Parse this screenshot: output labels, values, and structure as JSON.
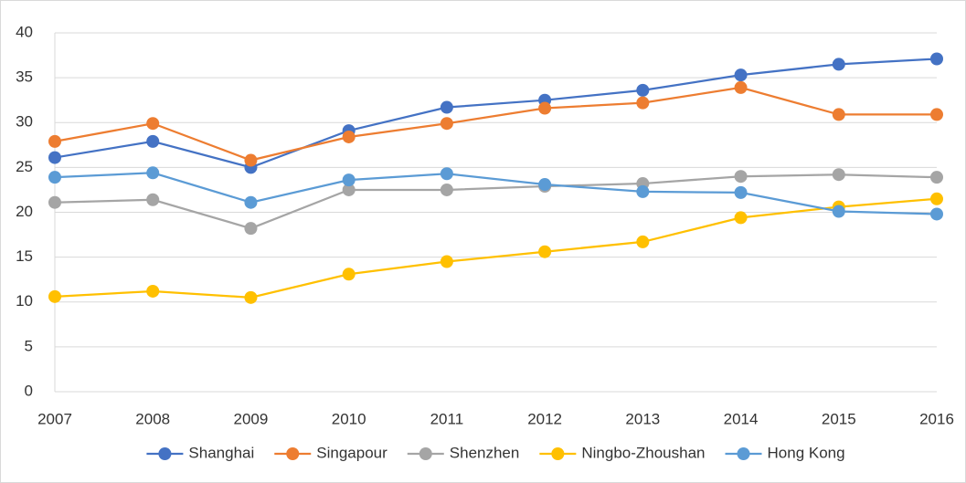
{
  "chart_data": {
    "type": "line",
    "categories": [
      "2007",
      "2008",
      "2009",
      "2010",
      "2011",
      "2012",
      "2013",
      "2014",
      "2015",
      "2016"
    ],
    "series": [
      {
        "name": "Shanghai",
        "color": "#4472c4",
        "values": [
          26.1,
          27.9,
          25.0,
          29.1,
          31.7,
          32.5,
          33.6,
          35.3,
          36.5,
          37.1
        ]
      },
      {
        "name": "Singapour",
        "color": "#ed7d31",
        "values": [
          27.9,
          29.9,
          25.8,
          28.4,
          29.9,
          31.6,
          32.2,
          33.9,
          30.9,
          30.9
        ]
      },
      {
        "name": "Shenzhen",
        "color": "#a5a5a5",
        "values": [
          21.1,
          21.4,
          18.2,
          22.5,
          22.5,
          22.9,
          23.2,
          24.0,
          24.2,
          23.9
        ]
      },
      {
        "name": "Ningbo-Zhoushan",
        "color": "#ffc000",
        "values": [
          10.6,
          11.2,
          10.5,
          13.1,
          14.5,
          15.6,
          16.7,
          19.4,
          20.6,
          21.5
        ]
      },
      {
        "name": "Hong Kong",
        "color": "#5b9bd5",
        "values": [
          23.9,
          24.4,
          21.1,
          23.6,
          24.3,
          23.1,
          22.3,
          22.2,
          20.1,
          19.8
        ]
      }
    ],
    "ylim": [
      0,
      40
    ],
    "yticks": [
      0,
      5,
      10,
      15,
      20,
      25,
      30,
      35,
      40
    ],
    "grid": true,
    "legend": "bottom"
  }
}
